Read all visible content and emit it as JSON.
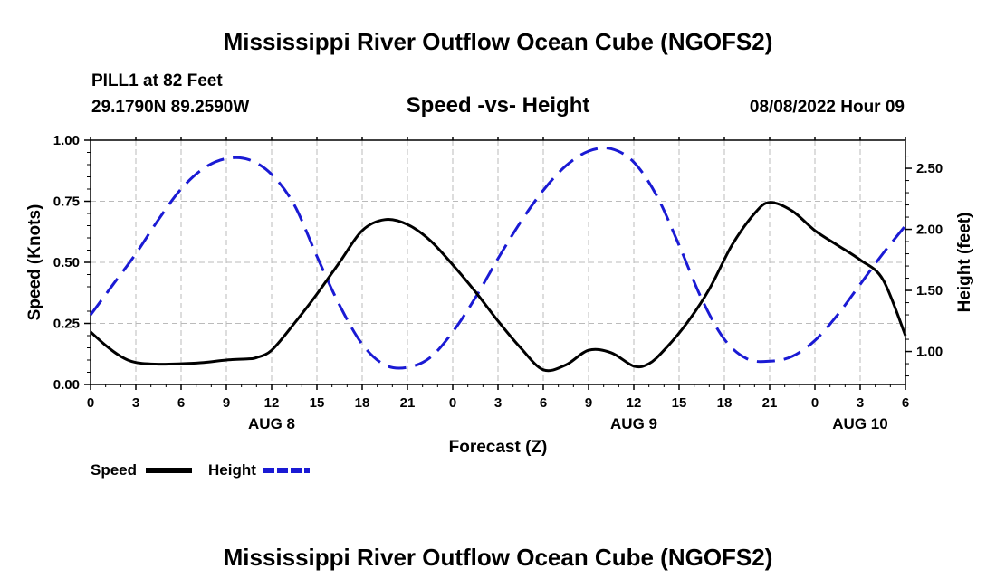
{
  "header": {
    "title": "Mississippi River Outflow Ocean Cube (NGOFS2)",
    "station": "PILL1 at 82 Feet",
    "coords": "29.1790N  89.2590W",
    "timestamp": "08/08/2022 Hour 09"
  },
  "footer": {
    "title": "Mississippi River Outflow Ocean Cube (NGOFS2)"
  },
  "colors": {
    "speed": "#000000",
    "height": "#1a1ad4",
    "grid": "#bbbbbb"
  },
  "chart_data": {
    "type": "line",
    "title": "Speed -vs- Height",
    "xlabel": "Forecast (Z)",
    "ylabel": "Speed (Knots)",
    "y2label": "Height (feet)",
    "x_unit": "hours from 08/08/2022 00Z",
    "xlim": [
      0,
      54
    ],
    "x_ticks": [
      0,
      3,
      6,
      9,
      12,
      15,
      18,
      21,
      24,
      27,
      30,
      33,
      36,
      39,
      42,
      45,
      48,
      51,
      54
    ],
    "x_tick_labels": [
      "0",
      "3",
      "6",
      "9",
      "12",
      "15",
      "18",
      "21",
      "0",
      "3",
      "6",
      "9",
      "12",
      "15",
      "18",
      "21",
      "0",
      "3",
      "6"
    ],
    "date_labels": [
      {
        "label": "AUG 8",
        "x": 12
      },
      {
        "label": "AUG 9",
        "x": 36
      },
      {
        "label": "AUG 10",
        "x": 51
      }
    ],
    "ylim": [
      0,
      1.0
    ],
    "y_ticks": [
      0,
      0.25,
      0.5,
      0.75,
      1.0
    ],
    "y_tick_labels": [
      "0.00",
      "0.25",
      "0.50",
      "0.75",
      "1.00"
    ],
    "y2lim": [
      0.73,
      2.73
    ],
    "y2_ticks": [
      1.0,
      1.5,
      2.0,
      2.5
    ],
    "y2_tick_labels": [
      "1.00",
      "1.50",
      "2.00",
      "2.50"
    ],
    "series": [
      {
        "name": "Speed",
        "axis": "left",
        "style": "solid",
        "x": [
          0,
          1,
          2,
          3,
          4.5,
          6,
          7.5,
          9,
          10.5,
          11,
          12,
          13.5,
          15,
          16.5,
          18,
          19.5,
          21,
          22.5,
          24,
          25.5,
          27,
          28.5,
          30,
          31.5,
          33,
          34.5,
          36,
          37,
          38,
          39.5,
          41,
          42.5,
          44,
          45,
          46.5,
          48,
          49.5,
          51,
          52.5,
          54
        ],
        "values": [
          0.215,
          0.16,
          0.115,
          0.09,
          0.083,
          0.085,
          0.09,
          0.1,
          0.105,
          0.11,
          0.14,
          0.25,
          0.37,
          0.5,
          0.63,
          0.675,
          0.655,
          0.59,
          0.49,
          0.38,
          0.26,
          0.15,
          0.06,
          0.08,
          0.14,
          0.13,
          0.075,
          0.085,
          0.14,
          0.25,
          0.39,
          0.57,
          0.7,
          0.745,
          0.71,
          0.63,
          0.57,
          0.51,
          0.43,
          0.2
        ]
      },
      {
        "name": "Height",
        "axis": "right",
        "style": "dashed",
        "x": [
          0,
          1.5,
          3,
          4.5,
          6,
          7.5,
          9,
          10.5,
          12,
          13.5,
          15,
          16.5,
          18,
          19.5,
          21,
          22.5,
          24,
          25.5,
          27,
          28.5,
          30,
          31.5,
          33,
          34.5,
          36,
          37.5,
          39,
          40.5,
          42,
          43.5,
          45,
          46.5,
          48,
          49.5,
          51,
          52.5,
          54
        ],
        "values": [
          1.3,
          1.55,
          1.8,
          2.08,
          2.33,
          2.5,
          2.58,
          2.57,
          2.45,
          2.2,
          1.78,
          1.38,
          1.06,
          0.89,
          0.87,
          0.95,
          1.16,
          1.44,
          1.76,
          2.06,
          2.32,
          2.52,
          2.64,
          2.66,
          2.55,
          2.28,
          1.87,
          1.43,
          1.1,
          0.94,
          0.92,
          0.96,
          1.09,
          1.3,
          1.55,
          1.8,
          2.03
        ]
      }
    ],
    "legend": [
      {
        "label": "Speed",
        "series": "Speed"
      },
      {
        "label": "Height",
        "series": "Height"
      }
    ]
  }
}
